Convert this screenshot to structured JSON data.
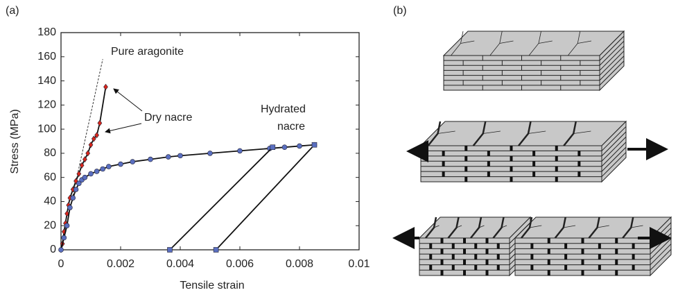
{
  "chart_data": {
    "type": "line",
    "panel_label": "(a)",
    "x_label": "Tensile strain",
    "y_label": "Stress (MPa)",
    "xlim": [
      0,
      0.01
    ],
    "ylim": [
      0,
      180
    ],
    "xticks": [
      0,
      0.002,
      0.004,
      0.006,
      0.008,
      0.01
    ],
    "yticks": [
      0,
      20,
      40,
      60,
      80,
      100,
      120,
      140,
      160,
      180
    ],
    "series": [
      {
        "name": "Pure aragonite",
        "color": "#333333",
        "dash": true,
        "marker": "none",
        "x": [
          0,
          0.0014
        ],
        "values": [
          0,
          158
        ]
      },
      {
        "name": "Dry nacre",
        "color": "#d9261c",
        "marker": "diamond",
        "x": [
          0,
          5e-05,
          0.0001,
          0.00015,
          0.0002,
          0.00025,
          0.0003,
          0.0004,
          0.0005,
          0.0006,
          0.0007,
          0.0008,
          0.0009,
          0.001,
          0.0011,
          0.0012,
          0.0013,
          0.0015
        ],
        "values": [
          0,
          5,
          15,
          22,
          30,
          37,
          43,
          50,
          57,
          63,
          70,
          75,
          80,
          87,
          92,
          95,
          105,
          135
        ]
      },
      {
        "name": "Hydrated nacre",
        "color": "#5a6fc0",
        "marker": "circle",
        "x": [
          0,
          0.0001,
          0.0002,
          0.0003,
          0.0004,
          0.0005,
          0.0006,
          0.0007,
          0.0008,
          0.001,
          0.0012,
          0.0014,
          0.0016,
          0.002,
          0.0024,
          0.003,
          0.0036,
          0.004,
          0.005,
          0.006,
          0.007,
          0.0075,
          0.008,
          0.0085
        ],
        "values": [
          0,
          10,
          20,
          35,
          43,
          50,
          55,
          58,
          60,
          63,
          65,
          67,
          69,
          71,
          73,
          75,
          77,
          78,
          80,
          82,
          84,
          85,
          86,
          87
        ]
      },
      {
        "color": "#5a6fc0",
        "marker": "square",
        "x": [
          0.00365,
          0.0071
        ],
        "values": [
          0,
          85
        ]
      },
      {
        "color": "#5a6fc0",
        "marker": "square",
        "x": [
          0.0052,
          0.0085
        ],
        "values": [
          0,
          87
        ]
      }
    ]
  },
  "diagram": {
    "panel_label": "(b)"
  }
}
